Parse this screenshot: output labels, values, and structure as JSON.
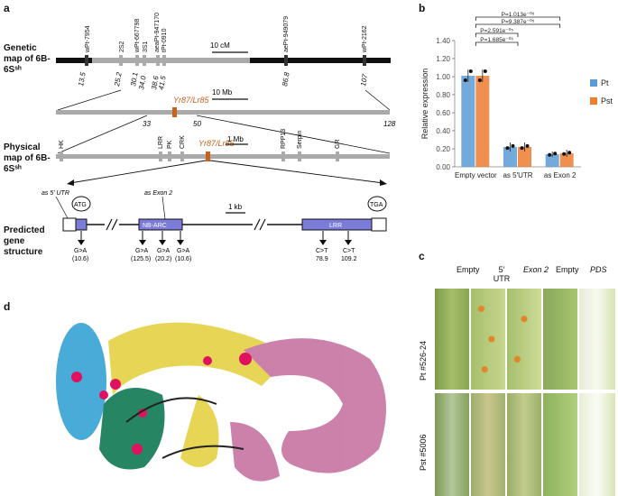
{
  "panels": {
    "a": "a",
    "b": "b",
    "c": "c",
    "d": "d"
  },
  "panel_a": {
    "genetic_map_label": "Genetic map of 6B-6Sˢʰ",
    "physical_map_label": "Physical map of 6B-6Sˢʰ",
    "gene_structure_label": "Predicted gene structure",
    "genetic_markers": [
      "wPt-7954",
      "2S2",
      "wPt-667798",
      "3S1",
      "aeaPt-947170",
      "tPt-0910",
      "aePt-949079",
      "wPt-2162"
    ],
    "genetic_positions": [
      "13.5",
      "25.2",
      "30.1",
      "34.0",
      "38.6",
      "41.5",
      "86.8",
      "107"
    ],
    "scale_genetic": "10 cM",
    "gene_name": "Yr87/Lr85",
    "scale_physical": "10 Mb",
    "physical_positions": [
      "33",
      "50",
      "128"
    ],
    "physical_genes": [
      "HK",
      "LRR",
      "PK",
      "CRK",
      "RPP13",
      "Serpin",
      "GR"
    ],
    "scale_physical2": "1 Mb",
    "as_utr": "as 5′ UTR",
    "as_exon": "as Exon 2",
    "atg": "ATG",
    "tga": "TGA",
    "domain_nbarc": "NB-ARC",
    "domain_lrr": "LRR",
    "scale_gene": "1 kb",
    "mutations": [
      "G>A",
      "(10.6)",
      "G>A",
      "(125.5)",
      "G>A",
      "(20.2)",
      "G>A",
      "(10.6)",
      "C>T",
      "78.9",
      "C>T",
      "109.2"
    ]
  },
  "chart_data": {
    "type": "bar",
    "title": "",
    "ylabel": "Relative expression",
    "categories": [
      "Empty vector",
      "as 5′UTR",
      "as Exon 2"
    ],
    "series": [
      {
        "name": "Pt",
        "values": [
          1.01,
          0.22,
          0.14
        ],
        "errors": [
          0.07,
          0.05,
          0.03
        ],
        "color": "#5b9bd5"
      },
      {
        "name": "Pst",
        "values": [
          1.01,
          0.22,
          0.15
        ],
        "errors": [
          0.07,
          0.05,
          0.04
        ],
        "color": "#ed7d31"
      }
    ],
    "ylim": [
      0,
      1.4
    ],
    "yticks": [
      "0.00",
      "0.20",
      "0.40",
      "0.60",
      "0.80",
      "1.00",
      "1.20",
      "1.40"
    ],
    "legend_position": "right",
    "annotations": [
      "P=1.013e⁻⁰⁵",
      "P=9.387e⁻⁰⁵",
      "P=2.591e⁻⁰⁵",
      "P=1.685e⁻⁰⁶"
    ]
  },
  "panel_c": {
    "columns": [
      "Empty",
      "5′ UTR",
      "Exon 2",
      "Empty",
      "PDS"
    ],
    "rows": [
      "Pt #526-24",
      "Pst #5006"
    ]
  },
  "colors": {
    "helix_blue": "#3fa7d6",
    "helix_yellow": "#e6d34c",
    "helix_green": "#1b7f5a",
    "helix_pink": "#c97ba6",
    "highlight": "#e0115f"
  }
}
